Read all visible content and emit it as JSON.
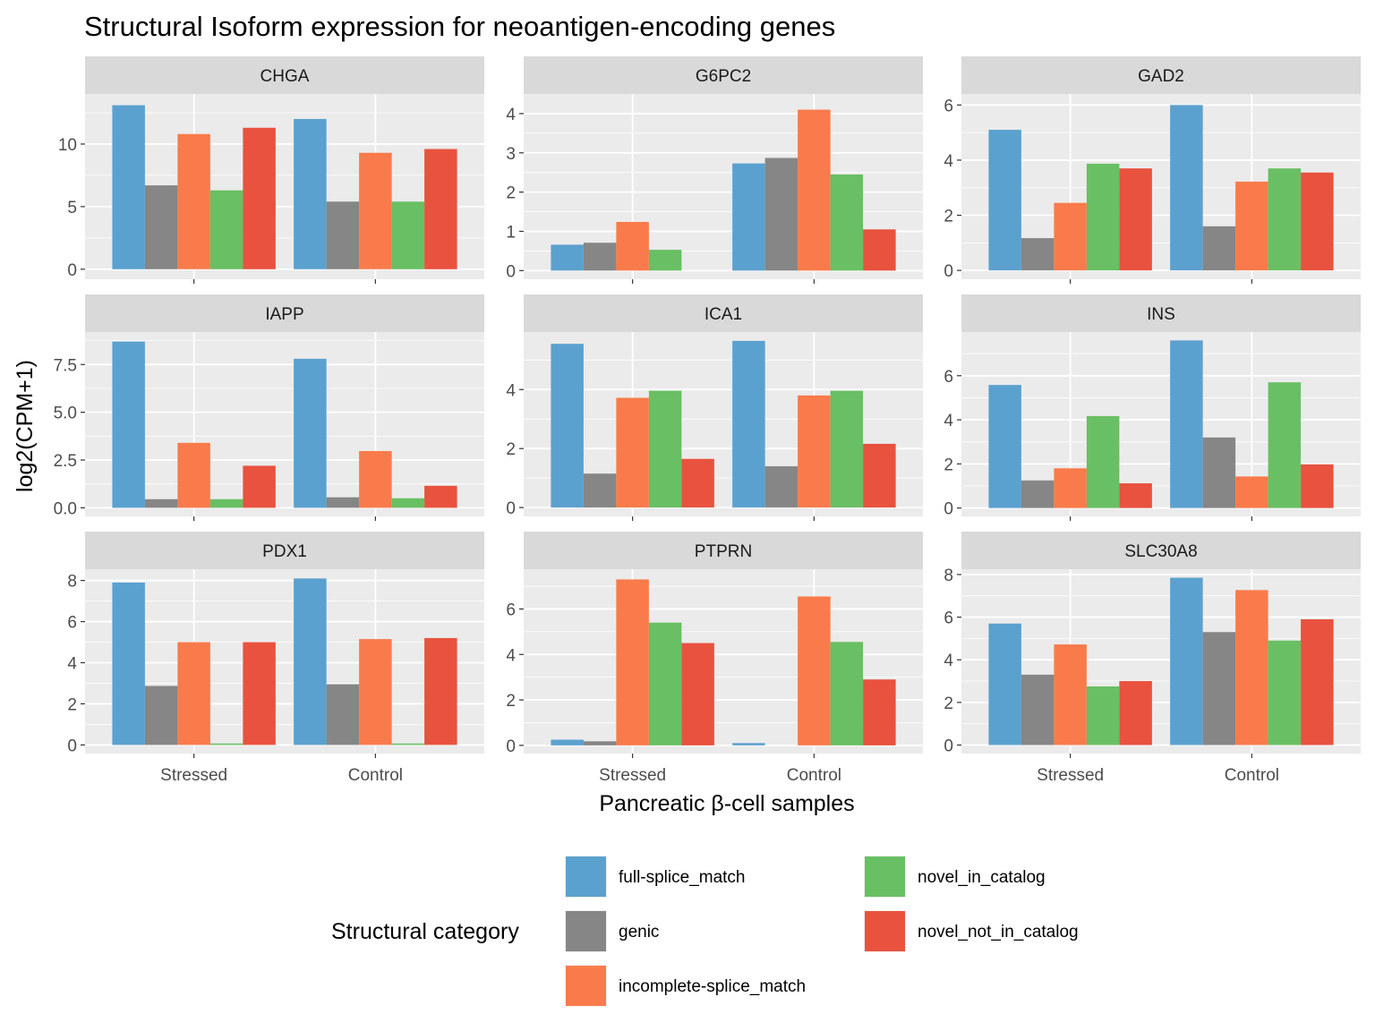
{
  "chart_data": {
    "type": "bar",
    "title": "Structural Isoform expression for neoantigen-encoding genes",
    "xlabel": "Pancreatic β-cell samples",
    "ylabel": "log2(CPM+1)",
    "categories": [
      "Stressed",
      "Control"
    ],
    "grid": true,
    "legend_position": "bottom",
    "legend": {
      "title": "Structural category",
      "entries": [
        {
          "name": "full-splice_match",
          "color": "#5ba1cf"
        },
        {
          "name": "genic",
          "color": "#868686"
        },
        {
          "name": "incomplete-splice_match",
          "color": "#f97b4b"
        },
        {
          "name": "novel_in_catalog",
          "color": "#69bf63"
        },
        {
          "name": "novel_not_in_catalog",
          "color": "#e8523f"
        }
      ]
    },
    "panels": [
      {
        "gene": "CHGA",
        "ylim": [
          -0.8,
          14.0
        ],
        "yticks": [
          0,
          5,
          10
        ],
        "ytick_labels": [
          "0",
          "5",
          "10"
        ],
        "series": [
          {
            "name": "full-splice_match",
            "values": [
              13.1,
              12.0
            ]
          },
          {
            "name": "genic",
            "values": [
              6.7,
              5.4
            ]
          },
          {
            "name": "incomplete-splice_match",
            "values": [
              10.8,
              9.3
            ]
          },
          {
            "name": "novel_in_catalog",
            "values": [
              6.3,
              5.4
            ]
          },
          {
            "name": "novel_not_in_catalog",
            "values": [
              11.3,
              9.6
            ]
          }
        ]
      },
      {
        "gene": "G6PC2",
        "ylim": [
          -0.22,
          4.5
        ],
        "yticks": [
          0,
          1,
          2,
          3,
          4
        ],
        "ytick_labels": [
          "0",
          "1",
          "2",
          "3",
          "4"
        ],
        "series": [
          {
            "name": "full-splice_match",
            "values": [
              0.66,
              2.73
            ]
          },
          {
            "name": "genic",
            "values": [
              0.71,
              2.87
            ]
          },
          {
            "name": "incomplete-splice_match",
            "values": [
              1.24,
              4.1
            ]
          },
          {
            "name": "novel_in_catalog",
            "values": [
              0.53,
              2.45
            ]
          },
          {
            "name": "novel_not_in_catalog",
            "values": [
              0.0,
              1.05
            ]
          }
        ]
      },
      {
        "gene": "GAD2",
        "ylim": [
          -0.32,
          6.4
        ],
        "yticks": [
          0,
          2,
          4,
          6
        ],
        "ytick_labels": [
          "0",
          "2",
          "4",
          "6"
        ],
        "series": [
          {
            "name": "full-splice_match",
            "values": [
              5.1,
              6.0
            ]
          },
          {
            "name": "genic",
            "values": [
              1.17,
              1.6
            ]
          },
          {
            "name": "incomplete-splice_match",
            "values": [
              2.45,
              3.22
            ]
          },
          {
            "name": "novel_in_catalog",
            "values": [
              3.87,
              3.7
            ]
          },
          {
            "name": "novel_not_in_catalog",
            "values": [
              3.7,
              3.55
            ]
          }
        ]
      },
      {
        "gene": "IAPP",
        "ylim": [
          -0.45,
          9.2
        ],
        "yticks": [
          0,
          2.5,
          5,
          7.5
        ],
        "ytick_labels": [
          "0.0",
          "2.5",
          "5.0",
          "7.5"
        ],
        "series": [
          {
            "name": "full-splice_match",
            "values": [
              8.7,
              7.8
            ]
          },
          {
            "name": "genic",
            "values": [
              0.45,
              0.55
            ]
          },
          {
            "name": "incomplete-splice_match",
            "values": [
              3.4,
              2.97
            ]
          },
          {
            "name": "novel_in_catalog",
            "values": [
              0.45,
              0.5
            ]
          },
          {
            "name": "novel_not_in_catalog",
            "values": [
              2.2,
              1.15
            ]
          }
        ]
      },
      {
        "gene": "ICA1",
        "ylim": [
          -0.3,
          5.95
        ],
        "yticks": [
          0,
          2,
          4
        ],
        "ytick_labels": [
          "0",
          "2",
          "4"
        ],
        "series": [
          {
            "name": "full-splice_match",
            "values": [
              5.55,
              5.65
            ]
          },
          {
            "name": "genic",
            "values": [
              1.15,
              1.4
            ]
          },
          {
            "name": "incomplete-splice_match",
            "values": [
              3.72,
              3.8
            ]
          },
          {
            "name": "novel_in_catalog",
            "values": [
              3.96,
              3.96
            ]
          },
          {
            "name": "novel_not_in_catalog",
            "values": [
              1.65,
              2.16
            ]
          }
        ]
      },
      {
        "gene": "INS",
        "ylim": [
          -0.38,
          7.98
        ],
        "yticks": [
          0,
          2,
          4,
          6
        ],
        "ytick_labels": [
          "0",
          "2",
          "4",
          "6"
        ],
        "series": [
          {
            "name": "full-splice_match",
            "values": [
              5.58,
              7.6
            ]
          },
          {
            "name": "genic",
            "values": [
              1.25,
              3.2
            ]
          },
          {
            "name": "incomplete-splice_match",
            "values": [
              1.8,
              1.43
            ]
          },
          {
            "name": "novel_in_catalog",
            "values": [
              4.17,
              5.7
            ]
          },
          {
            "name": "novel_not_in_catalog",
            "values": [
              1.12,
              1.98
            ]
          }
        ]
      },
      {
        "gene": "PDX1",
        "ylim": [
          -0.42,
          8.55
        ],
        "yticks": [
          0,
          2,
          4,
          6,
          8
        ],
        "ytick_labels": [
          "0",
          "2",
          "4",
          "6",
          "8"
        ],
        "series": [
          {
            "name": "full-splice_match",
            "values": [
              7.9,
              8.1
            ]
          },
          {
            "name": "genic",
            "values": [
              2.87,
              2.95
            ]
          },
          {
            "name": "incomplete-splice_match",
            "values": [
              5.0,
              5.15
            ]
          },
          {
            "name": "novel_in_catalog",
            "values": [
              0.07,
              0.07
            ]
          },
          {
            "name": "novel_not_in_catalog",
            "values": [
              5.0,
              5.2
            ]
          }
        ]
      },
      {
        "gene": "PTPRN",
        "ylim": [
          -0.36,
          7.75
        ],
        "yticks": [
          0,
          2,
          4,
          6
        ],
        "ytick_labels": [
          "0",
          "2",
          "4",
          "6"
        ],
        "series": [
          {
            "name": "full-splice_match",
            "values": [
              0.25,
              0.1
            ]
          },
          {
            "name": "genic",
            "values": [
              0.18,
              0.0
            ]
          },
          {
            "name": "incomplete-splice_match",
            "values": [
              7.3,
              6.55
            ]
          },
          {
            "name": "novel_in_catalog",
            "values": [
              5.4,
              4.55
            ]
          },
          {
            "name": "novel_not_in_catalog",
            "values": [
              4.5,
              2.9
            ]
          }
        ]
      },
      {
        "gene": "SLC30A8",
        "ylim": [
          -0.4,
          8.25
        ],
        "yticks": [
          0,
          2,
          4,
          6,
          8
        ],
        "ytick_labels": [
          "0",
          "2",
          "4",
          "6",
          "8"
        ],
        "series": [
          {
            "name": "full-splice_match",
            "values": [
              5.7,
              7.85
            ]
          },
          {
            "name": "genic",
            "values": [
              3.3,
              5.3
            ]
          },
          {
            "name": "incomplete-splice_match",
            "values": [
              4.72,
              7.27
            ]
          },
          {
            "name": "novel_in_catalog",
            "values": [
              2.75,
              4.9
            ]
          },
          {
            "name": "novel_not_in_catalog",
            "values": [
              3.0,
              5.9
            ]
          }
        ]
      }
    ]
  }
}
